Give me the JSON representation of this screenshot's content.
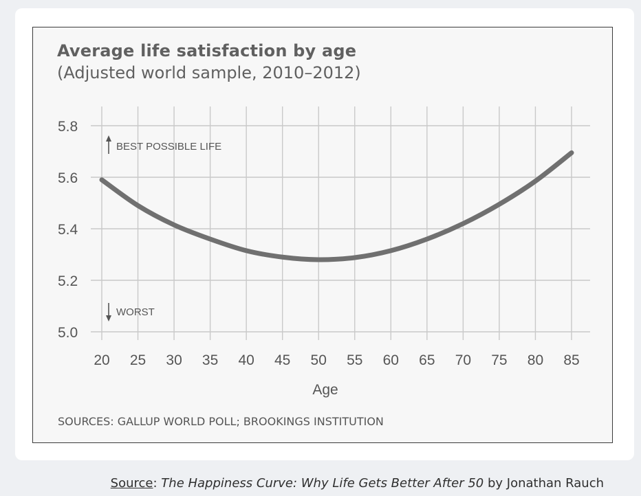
{
  "chart_data": {
    "type": "line",
    "title": "Average life satisfaction by age",
    "subtitle": "(Adjusted world sample, 2010–2012)",
    "xlabel": "Age",
    "ylabel": "",
    "x": [
      20,
      25,
      30,
      35,
      40,
      45,
      50,
      55,
      60,
      65,
      70,
      75,
      80,
      85
    ],
    "series": [
      {
        "values": [
          5.59,
          5.49,
          5.415,
          5.36,
          5.315,
          5.29,
          5.28,
          5.288,
          5.315,
          5.36,
          5.42,
          5.495,
          5.585,
          5.695
        ]
      }
    ],
    "xlim": [
      20,
      85
    ],
    "ylim": [
      5.0,
      5.8
    ],
    "yticks": [
      "5.0",
      "5.2",
      "5.4",
      "5.6",
      "5.8"
    ],
    "xticks": [
      "20",
      "25",
      "30",
      "35",
      "40",
      "45",
      "50",
      "55",
      "60",
      "65",
      "70",
      "75",
      "80",
      "85"
    ],
    "annotations": {
      "top": "BEST POSSIBLE LIFE",
      "bottom": "WORST"
    },
    "grid": true,
    "line_color": "#707070",
    "sources": "SOURCES: GALLUP WORLD POLL; BROOKINGS INSTITUTION"
  },
  "caption": {
    "source_label": "Source",
    "separator": ": ",
    "book_title": "The Happiness Curve: Why Life Gets Better After 50",
    "byline": " by Jonathan Rauch"
  }
}
